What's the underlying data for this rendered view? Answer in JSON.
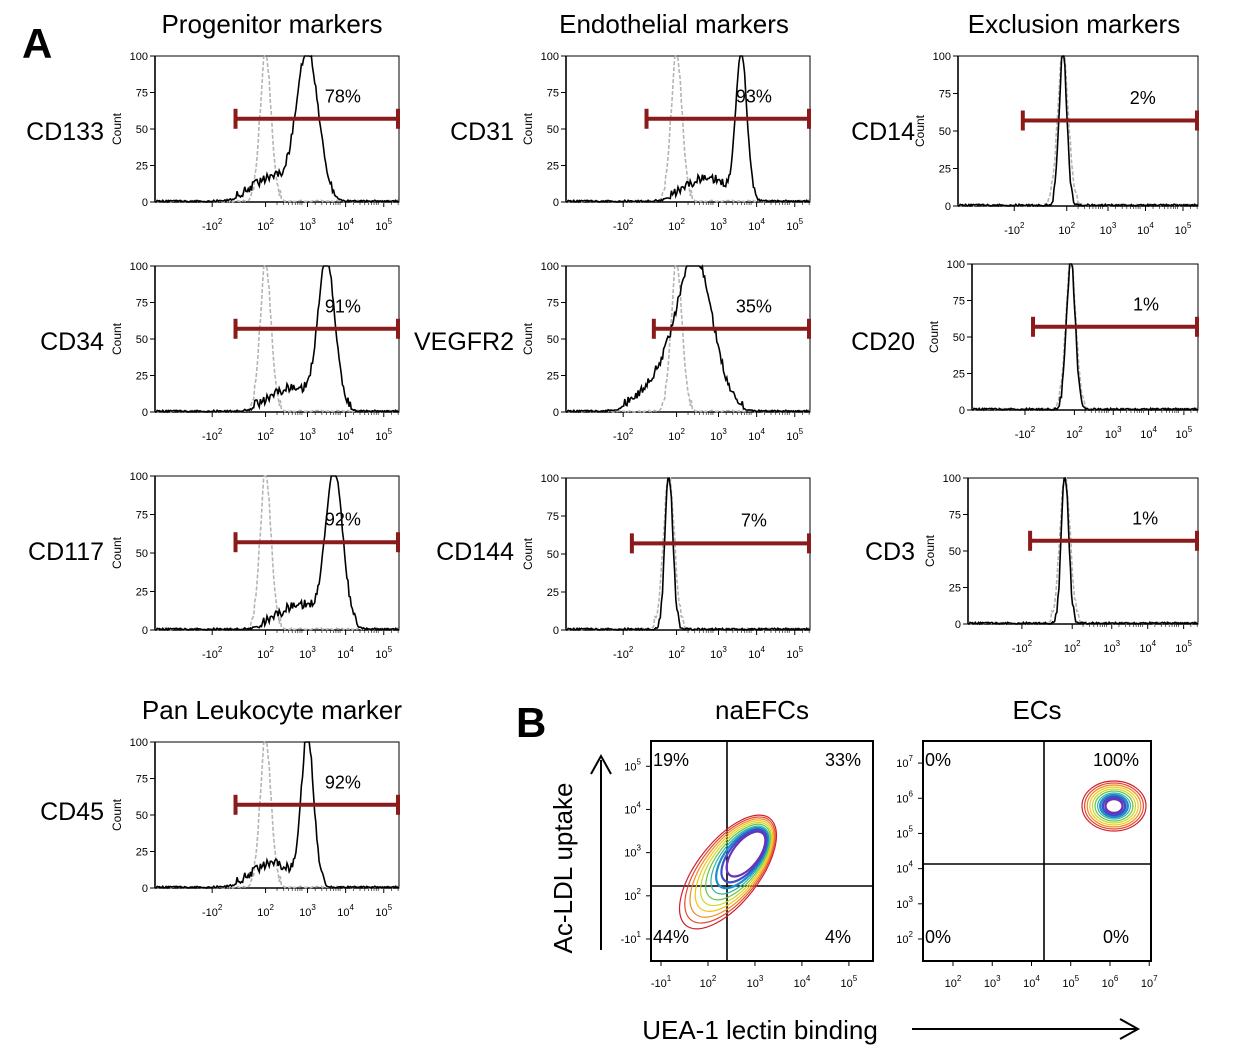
{
  "panel_a_label": "A",
  "panel_b_label": "B",
  "columns": {
    "progenitor": "Progenitor markers",
    "endothelial": "Endothelial markers",
    "exclusion": "Exclusion markers",
    "pan_leukocyte": "Pan Leukocyte marker"
  },
  "axis_text": {
    "count": "Count",
    "y_ticks": [
      "0",
      "25",
      "50",
      "75",
      "100"
    ],
    "x_tick_neg": "-10",
    "x_tick_exps": [
      "2",
      "2",
      "3",
      "4",
      "5"
    ]
  },
  "chart_data": [
    {
      "type": "area",
      "marker": "CD133",
      "column": "Progenitor markers",
      "percent_label": "78%",
      "positive_fraction": 0.78,
      "stain_peak_log": 3.0,
      "stain_width": 0.28,
      "iso_peak_log": 1.9,
      "xlim_log": [
        -1,
        5.4
      ],
      "ylim": [
        0,
        100
      ]
    },
    {
      "type": "area",
      "marker": "CD34",
      "column": "Progenitor markers",
      "percent_label": "91%",
      "positive_fraction": 0.91,
      "stain_peak_log": 3.5,
      "stain_width": 0.22,
      "iso_peak_log": 1.9,
      "xlim_log": [
        -1,
        5.4
      ],
      "ylim": [
        0,
        100
      ]
    },
    {
      "type": "area",
      "marker": "CD117",
      "column": "Progenitor markers",
      "percent_label": "92%",
      "positive_fraction": 0.92,
      "stain_peak_log": 3.7,
      "stain_width": 0.22,
      "iso_peak_log": 1.9,
      "xlim_log": [
        -1,
        5.4
      ],
      "ylim": [
        0,
        100
      ]
    },
    {
      "type": "area",
      "marker": "CD31",
      "column": "Endothelial markers",
      "percent_label": "93%",
      "positive_fraction": 0.93,
      "stain_peak_log": 3.6,
      "stain_width": 0.14,
      "iso_peak_log": 1.9,
      "xlim_log": [
        -1,
        5.4
      ],
      "ylim": [
        0,
        100
      ]
    },
    {
      "type": "area",
      "marker": "VEGFR2",
      "column": "Endothelial markers",
      "percent_label": "35%",
      "positive_fraction": 0.35,
      "stain_peak_log": 2.4,
      "stain_width": 0.45,
      "iso_peak_log": 1.9,
      "xlim_log": [
        -1,
        5.4
      ],
      "ylim": [
        0,
        100
      ]
    },
    {
      "type": "area",
      "marker": "CD144",
      "column": "Endothelial markers",
      "percent_label": "7%",
      "positive_fraction": 0.07,
      "stain_peak_log": 1.7,
      "stain_width": 0.1,
      "iso_peak_log": 1.7,
      "xlim_log": [
        -1,
        5.4
      ],
      "ylim": [
        0,
        100
      ]
    },
    {
      "type": "area",
      "marker": "CD14",
      "column": "Exclusion markers",
      "percent_label": "2%",
      "positive_fraction": 0.02,
      "stain_peak_log": 1.8,
      "stain_width": 0.1,
      "iso_peak_log": 1.8,
      "xlim_log": [
        -1,
        5.4
      ],
      "ylim": [
        0,
        100
      ]
    },
    {
      "type": "area",
      "marker": "CD20",
      "column": "Exclusion markers",
      "percent_label": "1%",
      "positive_fraction": 0.01,
      "stain_peak_log": 1.8,
      "stain_width": 0.12,
      "iso_peak_log": 1.8,
      "xlim_log": [
        -1,
        5.4
      ],
      "ylim": [
        0,
        100
      ]
    },
    {
      "type": "area",
      "marker": "CD3",
      "column": "Exclusion markers",
      "percent_label": "1%",
      "positive_fraction": 0.01,
      "stain_peak_log": 1.7,
      "stain_width": 0.1,
      "iso_peak_log": 1.7,
      "xlim_log": [
        -1,
        5.4
      ],
      "ylim": [
        0,
        100
      ]
    },
    {
      "type": "area",
      "marker": "CD45",
      "column": "Pan Leukocyte marker",
      "percent_label": "92%",
      "positive_fraction": 0.92,
      "stain_peak_log": 3.0,
      "stain_width": 0.16,
      "iso_peak_log": 1.9,
      "xlim_log": [
        -1,
        5.4
      ],
      "ylim": [
        0,
        100
      ]
    },
    {
      "type": "scatter",
      "title": "naEFCs",
      "quadrants": {
        "upper_left": "19%",
        "upper_right": "33%",
        "lower_left": "44%",
        "lower_right": "4%"
      },
      "x_ticks": [
        "-10",
        "10",
        "10",
        "10",
        "10"
      ],
      "x_tick_exps": [
        "1",
        "2",
        "3",
        "4",
        "5"
      ],
      "y_ticks": [
        "-10",
        "10",
        "10",
        "10",
        "10"
      ],
      "y_tick_exps": [
        "1",
        "2",
        "3",
        "4",
        "5"
      ]
    },
    {
      "type": "scatter",
      "title": "ECs",
      "quadrants": {
        "upper_left": "0%",
        "upper_right": "100%",
        "lower_left": "0%",
        "lower_right": "0%"
      },
      "x_ticks": [
        "10",
        "10",
        "10",
        "10",
        "10",
        "10"
      ],
      "x_tick_exps": [
        "2",
        "3",
        "4",
        "5",
        "6",
        "7"
      ],
      "y_ticks": [
        "10",
        "10",
        "10",
        "10",
        "10",
        "10"
      ],
      "y_tick_exps": [
        "2",
        "3",
        "4",
        "5",
        "6",
        "7"
      ]
    }
  ],
  "panel_b_axes": {
    "y_label": "Ac-LDL uptake",
    "x_label": "UEA-1 lectin binding"
  },
  "colors": {
    "gate": "#8b1a1a",
    "isotype": "#b4b4b4",
    "stain": "#000000"
  }
}
